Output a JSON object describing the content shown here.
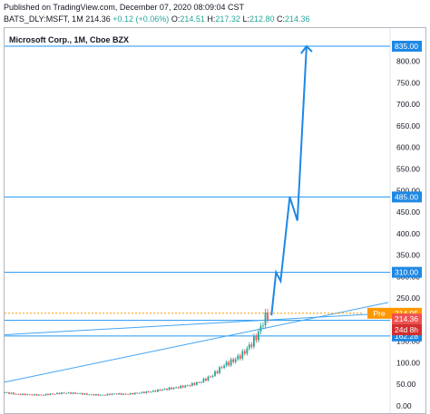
{
  "header": {
    "published": "Published on TradingView.com, December 07, 2020 08:09:04 CST",
    "symbol": "BATS_DLY:MSFT, 1M",
    "last": "214.36",
    "change": "+0.12 (+0.06%)",
    "o_label": "O:",
    "o_value": "214.51",
    "h_label": "H:",
    "h_value": "217.32",
    "l_label": "L:",
    "l_value": "212.80",
    "c_label": "C:",
    "c_value": "214.36"
  },
  "chart_data": {
    "type": "candlestick",
    "title": "Microsoft Corp., 1M, Cboe BZX",
    "ylim": [
      0,
      860
    ],
    "y_ticks": [
      0,
      50,
      100,
      150,
      200,
      250,
      300,
      350,
      400,
      450,
      500,
      550,
      600,
      650,
      700,
      750,
      800
    ],
    "y_tick_labels": [
      "0.00",
      "50.00",
      "100.00",
      "150.00",
      "200.00",
      "250.00",
      "300.00",
      "350.00",
      "400.00",
      "450.00",
      "500.00",
      "550.00",
      "600.00",
      "650.00",
      "700.00",
      "750.00",
      "800.00"
    ],
    "horizontal_levels": [
      {
        "value": 835,
        "label": "835.00",
        "color": "#2196f3"
      },
      {
        "value": 485,
        "label": "485.00",
        "color": "#2196f3"
      },
      {
        "value": 310,
        "label": "310.00",
        "color": "#2196f3"
      },
      {
        "value": 198.46,
        "label": "198.46",
        "color": "#2196f3"
      },
      {
        "value": 162.28,
        "label": "162.28",
        "color": "#2196f3"
      }
    ],
    "pre_market": {
      "label": "Pre",
      "value": 214.95,
      "text": "214.95",
      "color": "#ff9800"
    },
    "last_price": {
      "value": 214.36,
      "text": "214.36",
      "color": "#ef5350"
    },
    "countdown": {
      "text": "24d 8h",
      "color": "#ef5350"
    },
    "trendlines": [
      {
        "from": {
          "month": 0,
          "price": 55
        },
        "to": {
          "month": 204,
          "price": 240
        }
      },
      {
        "from": {
          "month": 0,
          "price": 165
        },
        "to": {
          "month": 204,
          "price": 215
        }
      }
    ],
    "projection_path": [
      {
        "month": 175,
        "price": 210
      },
      {
        "month": 178,
        "price": 310
      },
      {
        "month": 181,
        "price": 290
      },
      {
        "month": 187,
        "price": 485
      },
      {
        "month": 192,
        "price": 430
      },
      {
        "month": 198,
        "price": 835
      }
    ],
    "price_path": [
      [
        0,
        31
      ],
      [
        8,
        27
      ],
      [
        16,
        26
      ],
      [
        24,
        25
      ],
      [
        32,
        28
      ],
      [
        40,
        30
      ],
      [
        48,
        29
      ],
      [
        56,
        26
      ],
      [
        64,
        25
      ],
      [
        72,
        28
      ],
      [
        80,
        27
      ],
      [
        88,
        30
      ],
      [
        96,
        33
      ],
      [
        104,
        38
      ],
      [
        112,
        42
      ],
      [
        120,
        47
      ],
      [
        128,
        55
      ],
      [
        136,
        70
      ],
      [
        144,
        95
      ],
      [
        150,
        105
      ],
      [
        156,
        120
      ],
      [
        162,
        145
      ],
      [
        166,
        165
      ],
      [
        170,
        200
      ],
      [
        173,
        214
      ]
    ],
    "up_color": "#26a69a",
    "down_color": "#ef5350"
  }
}
